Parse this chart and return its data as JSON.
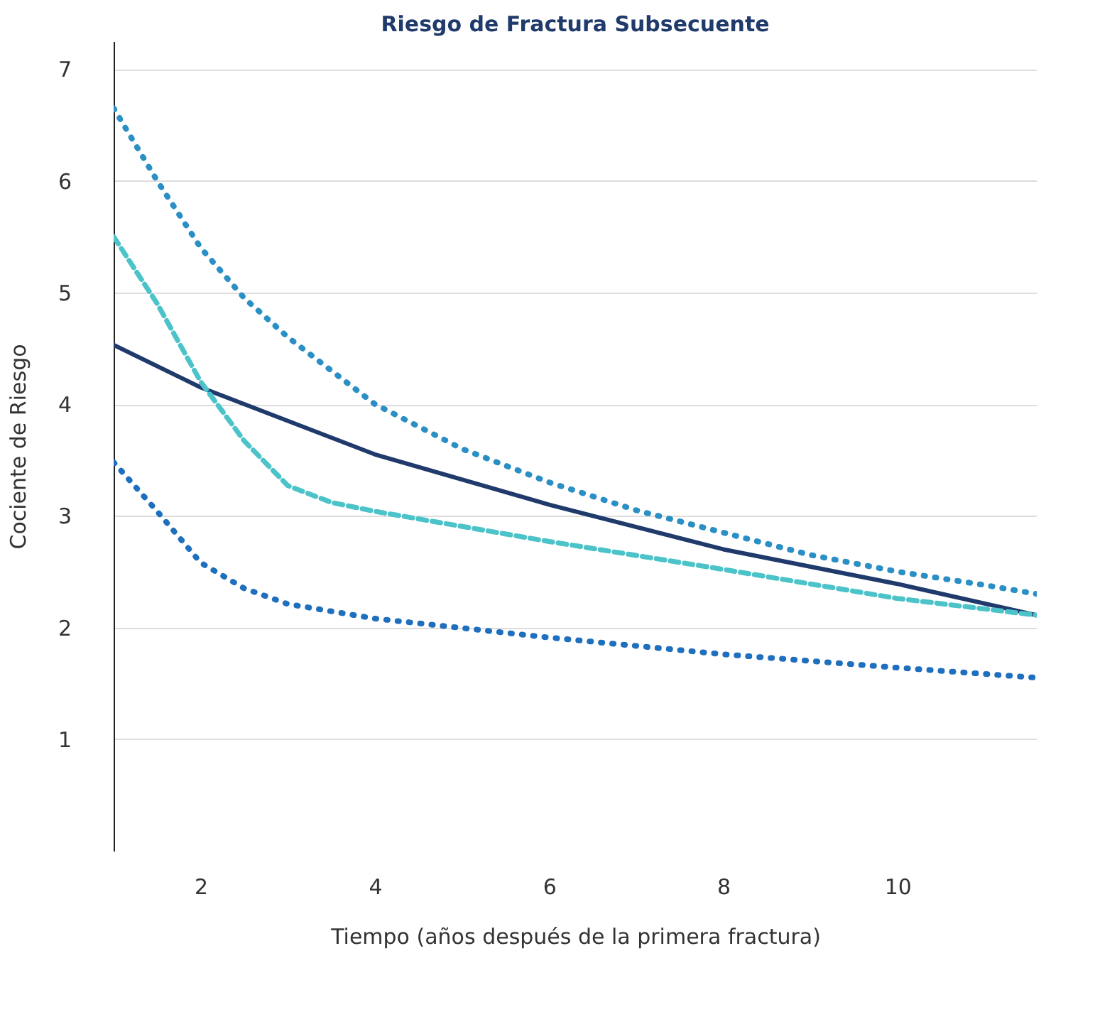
{
  "chart_data": {
    "type": "line",
    "title": "Riesgo de Fractura Subsecuente",
    "xlabel": "Tiempo (años después de la primera fractura)",
    "ylabel": "Cociente de Riesgo",
    "xlim": [
      1,
      11.6
    ],
    "xticks": [
      2,
      4,
      6,
      8,
      10
    ],
    "ylim": [
      0,
      7.25
    ],
    "yticks": [
      1,
      2,
      3,
      4,
      5,
      6,
      7
    ],
    "grid": "y",
    "series": [
      {
        "color": "#2a8fc4",
        "line_style": "dotted",
        "x": [
          1,
          1.5,
          2,
          2.5,
          3,
          4,
          5,
          6,
          7,
          8,
          9,
          10,
          11,
          11.6
        ],
        "values": [
          6.65,
          6.0,
          5.4,
          4.95,
          4.6,
          4.0,
          3.6,
          3.3,
          3.05,
          2.85,
          2.65,
          2.5,
          2.38,
          2.3
        ]
      },
      {
        "color": "#1f3a6b",
        "line_style": "solid",
        "x": [
          1,
          2,
          4,
          6,
          8,
          10,
          11.6
        ],
        "values": [
          4.53,
          4.15,
          3.55,
          3.1,
          2.7,
          2.39,
          2.11
        ]
      },
      {
        "color": "#4cc3c9",
        "line_style": "dashed",
        "x": [
          1,
          1.5,
          2,
          2.5,
          3,
          3.5,
          4,
          6,
          8,
          10,
          11.6
        ],
        "values": [
          5.5,
          4.9,
          4.2,
          3.67,
          3.27,
          3.12,
          3.04,
          2.77,
          2.52,
          2.26,
          2.11
        ]
      },
      {
        "color": "#1f6fbf",
        "line_style": "dotted",
        "x": [
          1,
          1.5,
          2,
          2.5,
          3,
          4,
          6,
          8,
          10,
          11.6
        ],
        "values": [
          3.48,
          3.04,
          2.58,
          2.35,
          2.21,
          2.08,
          1.91,
          1.76,
          1.64,
          1.55
        ]
      }
    ]
  }
}
